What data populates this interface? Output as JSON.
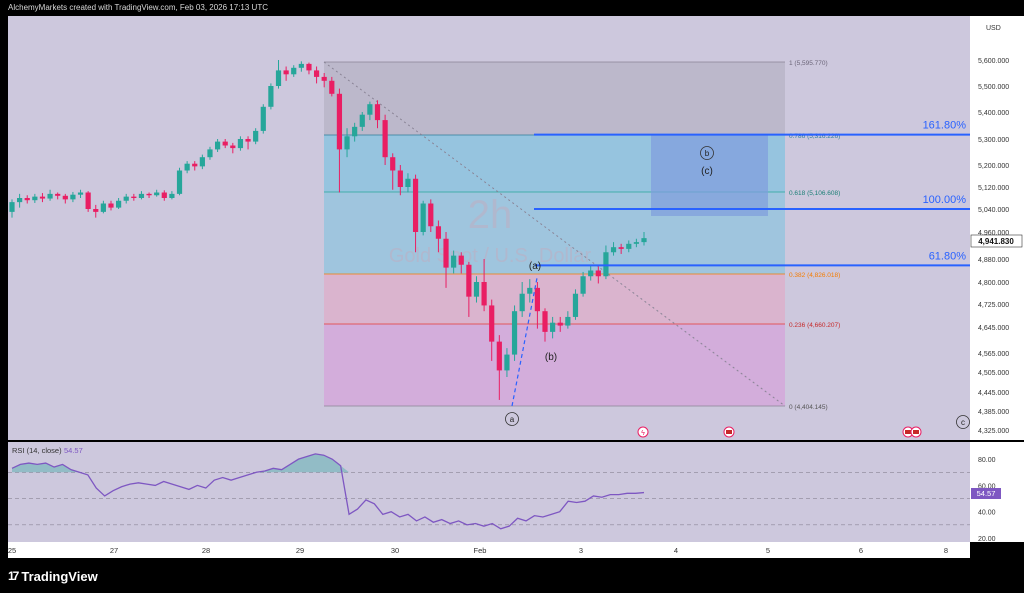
{
  "header": {
    "attribution": "AlchemyMarkets created with TradingView.com, Feb 03, 2026 17:13 UTC"
  },
  "currency_label": "USD",
  "watermark": {
    "interval": "2h",
    "symbol_name": "Gold Spot / U.S. Dollar"
  },
  "colors": {
    "chart_bg": "#cdc8dd",
    "candle_up": "#26a69a",
    "candle_down": "#e91e63",
    "rsi_line": "#7e57c2",
    "level_line": "#2962ff",
    "fib_cyan": "#69c1e0",
    "fib_pink": "#f48fb1",
    "fib_magenta": "#e07ad8",
    "fib_grey": "#a9a3b6"
  },
  "price_axis": {
    "ticks": [
      "5,600.000",
      "5,500.000",
      "5,400.000",
      "5,300.000",
      "5,200.000",
      "5,120.000",
      "5,040.000",
      "4,960.000",
      "4,880.000",
      "4,800.000",
      "4,725.000",
      "4,645.000",
      "4,565.000",
      "4,505.000",
      "4,445.000",
      "4,385.000",
      "4,325.000"
    ],
    "last_price": "4,941.830"
  },
  "rsi": {
    "label": "RSI (14, close)",
    "value": "54.57",
    "ticks": [
      "80.00",
      "60.00",
      "40.00",
      "20.00"
    ],
    "levels": [
      70,
      50,
      30
    ],
    "range": [
      20,
      90
    ],
    "series": [
      73,
      76,
      77,
      76,
      77,
      74,
      76,
      72,
      70,
      68,
      58,
      52,
      56,
      59,
      61,
      62,
      61,
      60,
      63,
      61,
      59,
      57,
      60,
      58,
      64,
      66,
      64,
      66,
      68,
      70,
      71,
      73,
      72,
      76,
      80,
      82,
      84,
      83,
      80,
      75,
      38,
      42,
      49,
      46,
      38,
      40,
      36,
      38,
      33,
      36,
      32,
      34,
      31,
      33,
      30,
      31,
      29,
      31,
      27,
      29,
      35,
      33,
      37,
      36,
      38,
      40,
      48,
      47,
      48,
      52,
      51,
      53,
      53,
      54,
      54,
      54.57
    ]
  },
  "time_axis": {
    "labels": [
      "25",
      "27",
      "28",
      "29",
      "30",
      "Feb",
      "3",
      "4",
      "5",
      "6",
      "8"
    ]
  },
  "fib": {
    "levels": [
      {
        "ratio": 1,
        "label": "1 (5,595.770)"
      },
      {
        "ratio": 0.786,
        "label": "0.786 (5,316.226)"
      },
      {
        "ratio": 0.618,
        "label": "0.618 (5,106.608)"
      },
      {
        "ratio": 0.382,
        "label": "0.382 (4,826.018)"
      },
      {
        "ratio": 0.236,
        "label": "0.236 (4,660.207)"
      },
      {
        "ratio": 0,
        "label": "0 (4,404.145)"
      }
    ]
  },
  "extensions": [
    {
      "label": "161.80%",
      "price": 5316
    },
    {
      "label": "100.00%",
      "price": 5040
    },
    {
      "label": "61.80%",
      "price": 4858
    }
  ],
  "wave_labels": {
    "circled_a": "a",
    "circled_b": "b",
    "circled_c": "c",
    "paren_a": "(a)",
    "paren_b": "(b)",
    "paren_c": "(c)"
  },
  "chart_data": {
    "type": "candlestick",
    "symbol": "Gold Spot / U.S. Dollar",
    "interval": "2h",
    "x_axis": [
      "25",
      "27",
      "28",
      "29",
      "30",
      "Feb",
      "3",
      "4",
      "5",
      "6",
      "8"
    ],
    "ylim": [
      4300,
      5650
    ],
    "candles": [
      [
        5030,
        5065,
        5010,
        5075
      ],
      [
        5065,
        5080,
        5045,
        5095
      ],
      [
        5080,
        5072,
        5060,
        5090
      ],
      [
        5072,
        5085,
        5062,
        5095
      ],
      [
        5085,
        5078,
        5065,
        5098
      ],
      [
        5078,
        5095,
        5070,
        5110
      ],
      [
        5095,
        5088,
        5075,
        5100
      ],
      [
        5088,
        5075,
        5060,
        5095
      ],
      [
        5075,
        5092,
        5065,
        5102
      ],
      [
        5092,
        5100,
        5080,
        5110
      ],
      [
        5100,
        5040,
        5030,
        5105
      ],
      [
        5040,
        5030,
        5010,
        5055
      ],
      [
        5030,
        5060,
        5025,
        5070
      ],
      [
        5060,
        5045,
        5035,
        5070
      ],
      [
        5045,
        5070,
        5040,
        5080
      ],
      [
        5070,
        5085,
        5060,
        5095
      ],
      [
        5085,
        5080,
        5070,
        5095
      ],
      [
        5080,
        5095,
        5075,
        5105
      ],
      [
        5095,
        5090,
        5080,
        5100
      ],
      [
        5090,
        5100,
        5085,
        5110
      ],
      [
        5100,
        5080,
        5070,
        5108
      ],
      [
        5080,
        5095,
        5075,
        5105
      ],
      [
        5095,
        5180,
        5090,
        5190
      ],
      [
        5180,
        5205,
        5170,
        5215
      ],
      [
        5205,
        5195,
        5180,
        5215
      ],
      [
        5195,
        5230,
        5185,
        5240
      ],
      [
        5230,
        5260,
        5220,
        5270
      ],
      [
        5260,
        5290,
        5250,
        5300
      ],
      [
        5290,
        5275,
        5265,
        5300
      ],
      [
        5275,
        5265,
        5245,
        5285
      ],
      [
        5265,
        5300,
        5255,
        5310
      ],
      [
        5300,
        5290,
        5260,
        5310
      ],
      [
        5290,
        5330,
        5280,
        5340
      ],
      [
        5330,
        5420,
        5320,
        5430
      ],
      [
        5420,
        5500,
        5410,
        5510
      ],
      [
        5500,
        5560,
        5490,
        5600
      ],
      [
        5560,
        5545,
        5520,
        5575
      ],
      [
        5545,
        5570,
        5535,
        5580
      ],
      [
        5570,
        5585,
        5555,
        5595
      ],
      [
        5585,
        5560,
        5545,
        5590
      ],
      [
        5560,
        5535,
        5510,
        5575
      ],
      [
        5535,
        5520,
        5495,
        5550
      ],
      [
        5520,
        5470,
        5460,
        5535
      ],
      [
        5470,
        5260,
        5100,
        5490
      ],
      [
        5260,
        5310,
        5230,
        5340
      ],
      [
        5310,
        5345,
        5290,
        5360
      ],
      [
        5345,
        5390,
        5330,
        5400
      ],
      [
        5390,
        5430,
        5370,
        5440
      ],
      [
        5430,
        5370,
        5340,
        5445
      ],
      [
        5370,
        5230,
        5200,
        5390
      ],
      [
        5230,
        5180,
        5110,
        5245
      ],
      [
        5180,
        5120,
        5090,
        5200
      ],
      [
        5120,
        5150,
        5100,
        5170
      ],
      [
        5150,
        4960,
        4900,
        5165
      ],
      [
        4960,
        5060,
        4950,
        5070
      ],
      [
        5060,
        4980,
        4960,
        5075
      ],
      [
        4980,
        4940,
        4900,
        5000
      ],
      [
        4940,
        4850,
        4780,
        4960
      ],
      [
        4850,
        4890,
        4830,
        4905
      ],
      [
        4890,
        4860,
        4830,
        4900
      ],
      [
        4860,
        4750,
        4680,
        4870
      ],
      [
        4750,
        4800,
        4730,
        4820
      ],
      [
        4800,
        4720,
        4700,
        4880
      ],
      [
        4720,
        4600,
        4540,
        4740
      ],
      [
        4600,
        4510,
        4420,
        4620
      ],
      [
        4510,
        4560,
        4490,
        4580
      ],
      [
        4560,
        4700,
        4540,
        4720
      ],
      [
        4700,
        4760,
        4680,
        4800
      ],
      [
        4760,
        4780,
        4730,
        4810
      ],
      [
        4780,
        4700,
        4640,
        4800
      ],
      [
        4700,
        4630,
        4600,
        4710
      ],
      [
        4630,
        4660,
        4610,
        4680
      ],
      [
        4660,
        4650,
        4630,
        4680
      ],
      [
        4650,
        4680,
        4640,
        4700
      ],
      [
        4680,
        4760,
        4670,
        4775
      ],
      [
        4760,
        4820,
        4750,
        4835
      ],
      [
        4820,
        4840,
        4805,
        4860
      ],
      [
        4840,
        4820,
        4795,
        4855
      ],
      [
        4820,
        4900,
        4810,
        4920
      ],
      [
        4900,
        4915,
        4890,
        4930
      ],
      [
        4915,
        4910,
        4895,
        4925
      ],
      [
        4910,
        4925,
        4900,
        4935
      ],
      [
        4925,
        4930,
        4915,
        4940
      ],
      [
        4930,
        4941.83,
        4920,
        4960
      ]
    ]
  }
}
